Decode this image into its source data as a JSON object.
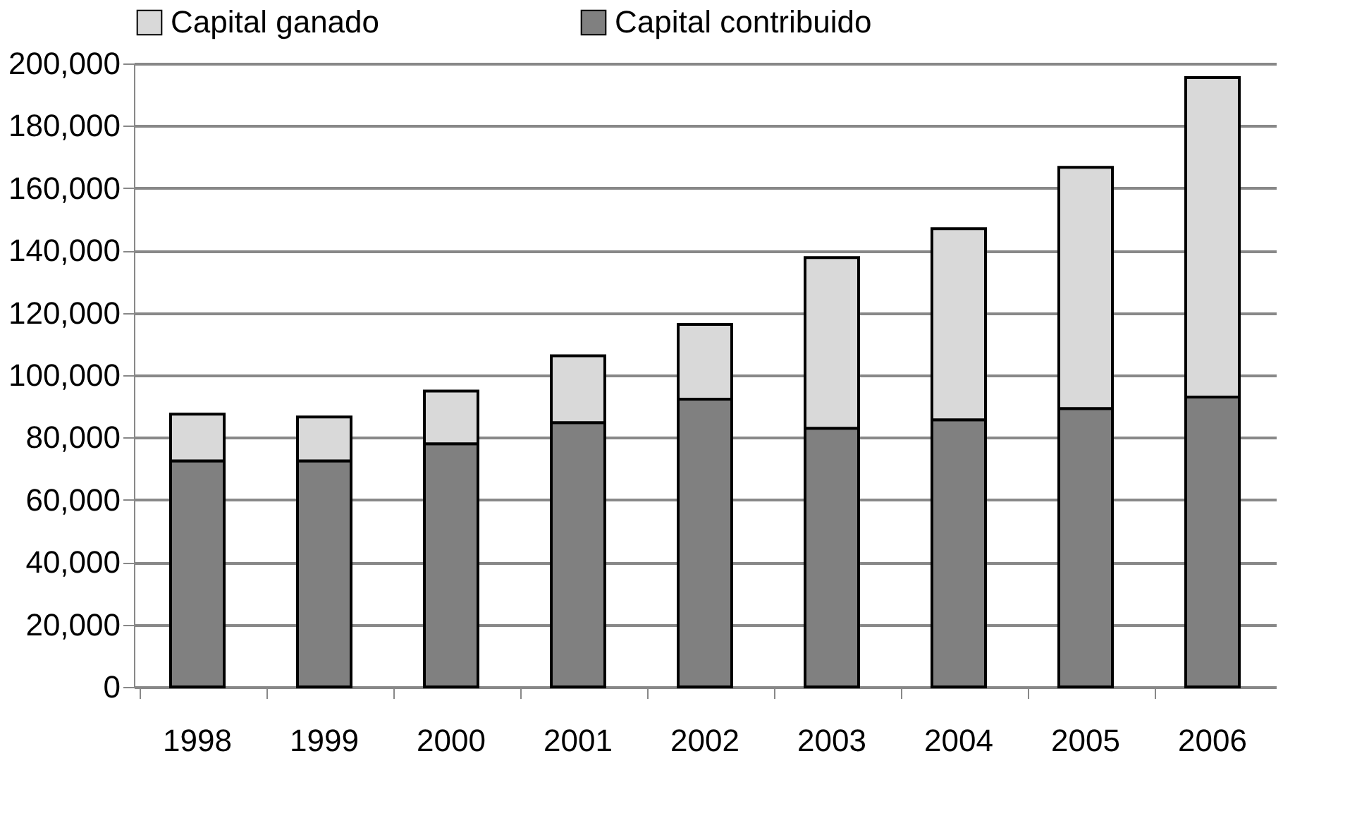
{
  "chart_data": {
    "type": "bar",
    "stacked": true,
    "categories": [
      "1998",
      "1999",
      "2000",
      "2001",
      "2002",
      "2003",
      "2004",
      "2005",
      "2006"
    ],
    "series": [
      {
        "name": "Capital contribuido",
        "color": "#808080",
        "values": [
          72500,
          72500,
          78000,
          84800,
          92300,
          83000,
          85700,
          89300,
          93000
        ]
      },
      {
        "name": "Capital ganado",
        "color": "#d9d9d9",
        "values": [
          15000,
          14100,
          16900,
          21400,
          24000,
          54700,
          61300,
          77400,
          102500
        ]
      }
    ],
    "ylim": [
      0,
      200000
    ],
    "yticks": [
      {
        "value": 0,
        "label": "0"
      },
      {
        "value": 20000,
        "label": "20,000"
      },
      {
        "value": 40000,
        "label": "40,000"
      },
      {
        "value": 60000,
        "label": "60,000"
      },
      {
        "value": 80000,
        "label": "80,000"
      },
      {
        "value": 100000,
        "label": "100,000"
      },
      {
        "value": 120000,
        "label": "120,000"
      },
      {
        "value": 140000,
        "label": "140,000"
      },
      {
        "value": 160000,
        "label": "160,000"
      },
      {
        "value": 180000,
        "label": "180,000"
      },
      {
        "value": 200000,
        "label": "200,000"
      }
    ],
    "grid": "y",
    "legend": "top"
  }
}
